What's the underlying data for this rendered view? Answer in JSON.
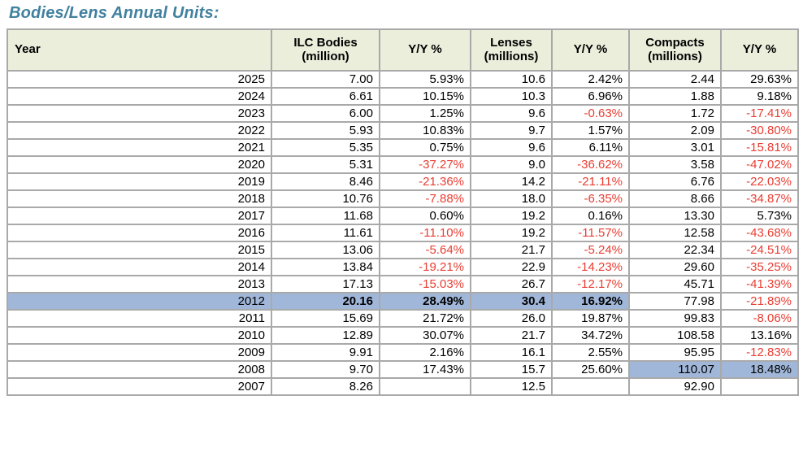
{
  "title": "Bodies/Lens Annual Units:",
  "colors": {
    "title_teal": "#41819f",
    "header_bg": "#eaeedb",
    "row_highlight_blue": "#a1b7d9",
    "negative_red": "#e93d32",
    "grid_border": "#a9a9a9"
  },
  "chart_data": {
    "type": "table",
    "title": "Bodies/Lens Annual Units:",
    "columns": [
      {
        "label": "Year"
      },
      {
        "label": "ILC Bodies\n(million)"
      },
      {
        "label": "Y/Y %"
      },
      {
        "label": "Lenses\n(millions)"
      },
      {
        "label": "Y/Y %"
      },
      {
        "label": "Compacts\n(millions)"
      },
      {
        "label": "Y/Y %"
      }
    ],
    "rows": [
      {
        "year": "2025",
        "cells": [
          "7.00",
          "5.93%",
          "10.6",
          "2.42%",
          "2.44",
          "29.63%"
        ]
      },
      {
        "year": "2024",
        "cells": [
          "6.61",
          "10.15%",
          "10.3",
          "6.96%",
          "1.88",
          "9.18%"
        ]
      },
      {
        "year": "2023",
        "cells": [
          "6.00",
          "1.25%",
          "9.6",
          "-0.63%",
          "1.72",
          "-17.41%"
        ]
      },
      {
        "year": "2022",
        "cells": [
          "5.93",
          "10.83%",
          "9.7",
          "1.57%",
          "2.09",
          "-30.80%"
        ]
      },
      {
        "year": "2021",
        "cells": [
          "5.35",
          "0.75%",
          "9.6",
          "6.11%",
          "3.01",
          "-15.81%"
        ]
      },
      {
        "year": "2020",
        "cells": [
          "5.31",
          "-37.27%",
          "9.0",
          "-36.62%",
          "3.58",
          "-47.02%"
        ]
      },
      {
        "year": "2019",
        "cells": [
          "8.46",
          "-21.36%",
          "14.2",
          "-21.11%",
          "6.76",
          "-22.03%"
        ]
      },
      {
        "year": "2018",
        "cells": [
          "10.76",
          "-7.88%",
          "18.0",
          "-6.35%",
          "8.66",
          "-34.87%"
        ]
      },
      {
        "year": "2017",
        "cells": [
          "11.68",
          "0.60%",
          "19.2",
          "0.16%",
          "13.30",
          "5.73%"
        ]
      },
      {
        "year": "2016",
        "cells": [
          "11.61",
          "-11.10%",
          "19.2",
          "-11.57%",
          "12.58",
          "-43.68%"
        ]
      },
      {
        "year": "2015",
        "cells": [
          "13.06",
          "-5.64%",
          "21.7",
          "-5.24%",
          "22.34",
          "-24.51%"
        ]
      },
      {
        "year": "2014",
        "cells": [
          "13.84",
          "-19.21%",
          "22.9",
          "-14.23%",
          "29.60",
          "-35.25%"
        ]
      },
      {
        "year": "2013",
        "cells": [
          "17.13",
          "-15.03%",
          "26.7",
          "-12.17%",
          "45.71",
          "-41.39%"
        ]
      },
      {
        "year": "2012",
        "cells": [
          "20.16",
          "28.49%",
          "30.4",
          "16.92%",
          "77.98",
          "-21.89%"
        ],
        "highlight": [
          "year",
          "c0",
          "c1",
          "c2",
          "c3"
        ],
        "bold": [
          "c0",
          "c1",
          "c2",
          "c3"
        ]
      },
      {
        "year": "2011",
        "cells": [
          "15.69",
          "21.72%",
          "26.0",
          "19.87%",
          "99.83",
          "-8.06%"
        ]
      },
      {
        "year": "2010",
        "cells": [
          "12.89",
          "30.07%",
          "21.7",
          "34.72%",
          "108.58",
          "13.16%"
        ]
      },
      {
        "year": "2009",
        "cells": [
          "9.91",
          "2.16%",
          "16.1",
          "2.55%",
          "95.95",
          "-12.83%"
        ]
      },
      {
        "year": "2008",
        "cells": [
          "9.70",
          "17.43%",
          "15.7",
          "25.60%",
          "110.07",
          "18.48%"
        ],
        "highlight": [
          "c4",
          "c5"
        ]
      },
      {
        "year": "2007",
        "cells": [
          "8.26",
          "",
          "12.5",
          "",
          "92.90",
          ""
        ]
      }
    ]
  }
}
